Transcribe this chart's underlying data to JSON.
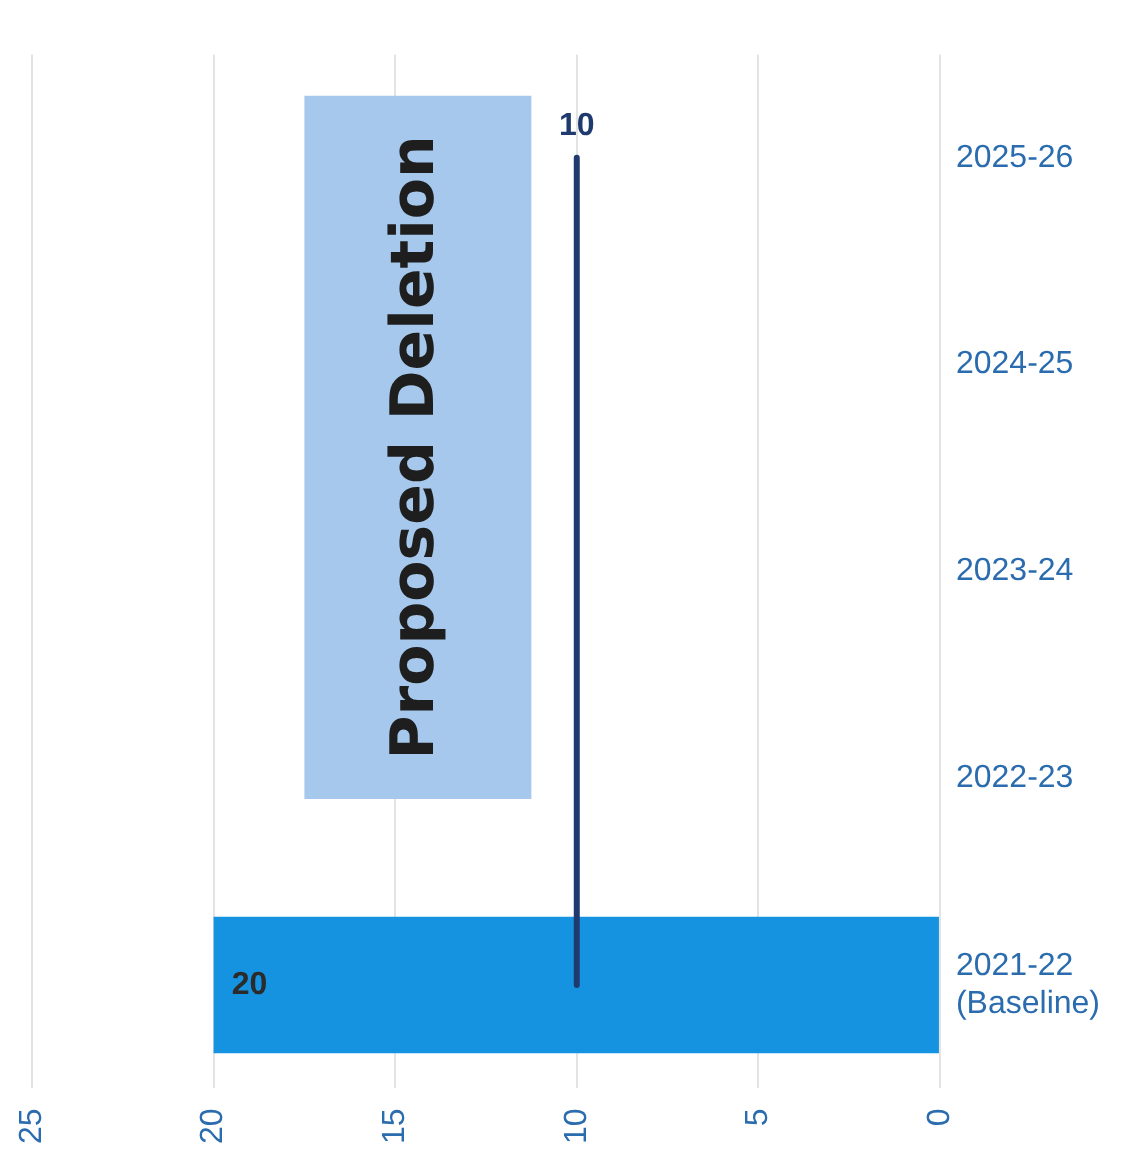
{
  "chart_data": {
    "type": "bar",
    "orientation": "horizontal",
    "categories": [
      "2025-26",
      "2024-25",
      "2023-24",
      "2022-23",
      "2021-22\n(Baseline)"
    ],
    "series": [
      {
        "color": "#1592e0",
        "values": [
          null,
          null,
          null,
          null,
          20
        ],
        "value_labels": [
          null,
          null,
          null,
          null,
          "20"
        ]
      },
      {
        "type": "line",
        "color": "#1f3a6e",
        "values": [
          10,
          10,
          10,
          10,
          10
        ],
        "value_labels": [
          "10",
          null,
          null,
          null,
          null
        ]
      }
    ],
    "xlim": [
      25,
      0
    ],
    "xticks": [
      0,
      5,
      10,
      15,
      20,
      25
    ],
    "grid": "x",
    "legend": false,
    "marker": "none",
    "annotations": [
      "Proposed Deletion"
    ]
  }
}
